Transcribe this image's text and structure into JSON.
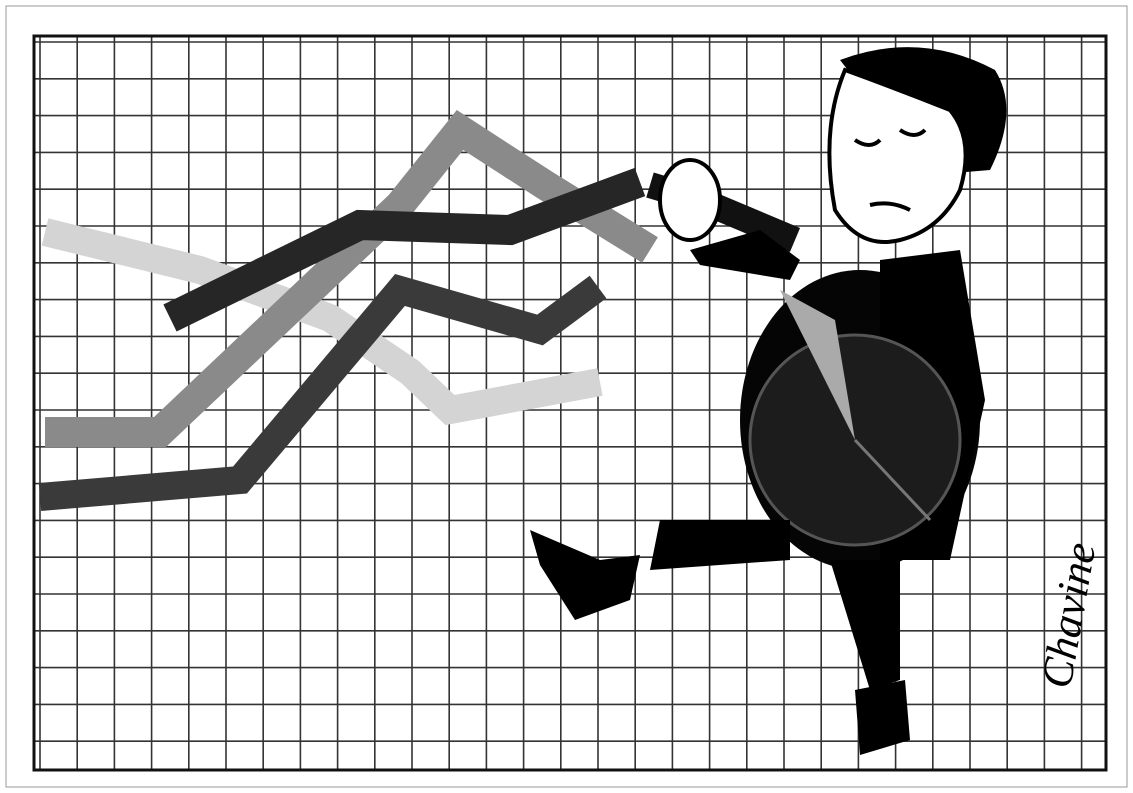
{
  "image": {
    "signature": "Chavine"
  }
}
